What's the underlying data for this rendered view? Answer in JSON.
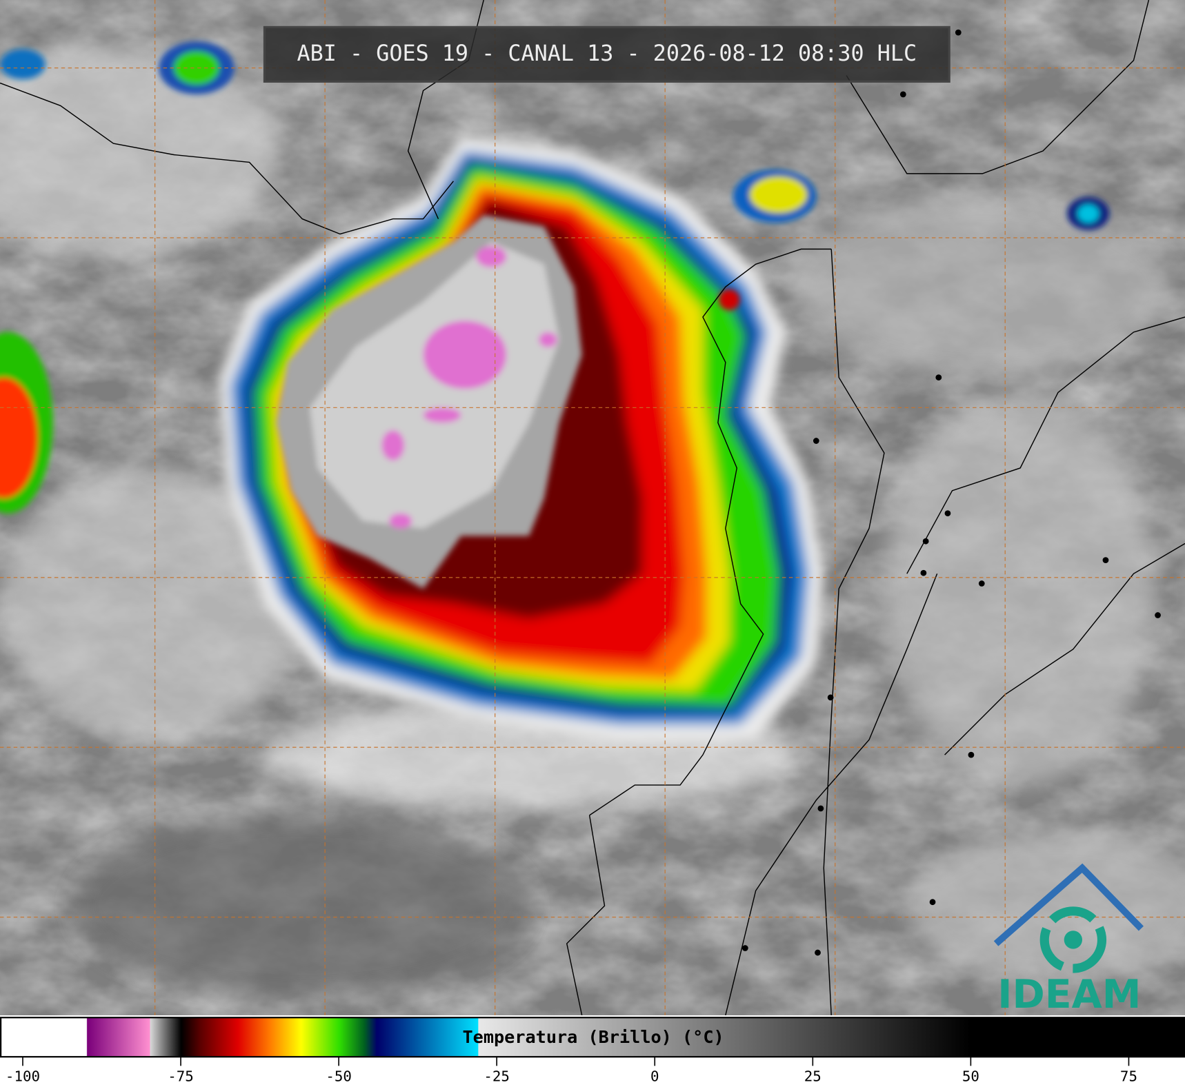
{
  "title": "ABI - GOES 19 - CANAL 13 - 2026-08-12 08:30 HLC",
  "colorbar": {
    "label": "Temperatura (Brillo) (°C)",
    "xlim": [
      -103.6,
      83.9
    ],
    "ticks": [
      -100,
      -75,
      -50,
      -25,
      0,
      25,
      50,
      75
    ],
    "colormap": [
      {
        "value": -103.6,
        "color": "#ffffff"
      },
      {
        "value": -90,
        "color": "#ffffff"
      },
      {
        "value": -89.9,
        "color": "#7a007a"
      },
      {
        "value": -80,
        "color": "#ff90d0"
      },
      {
        "value": -79.9,
        "color": "#d8d8d8"
      },
      {
        "value": -75,
        "color": "#000000"
      },
      {
        "value": -72,
        "color": "#5a0000"
      },
      {
        "value": -66,
        "color": "#e00000"
      },
      {
        "value": -61,
        "color": "#ff7a00"
      },
      {
        "value": -56,
        "color": "#ffff00"
      },
      {
        "value": -50,
        "color": "#30e000"
      },
      {
        "value": -46,
        "color": "#006020"
      },
      {
        "value": -44,
        "color": "#00006a"
      },
      {
        "value": -28,
        "color": "#00e0ff"
      },
      {
        "value": -27.9,
        "color": "#e8e8e8"
      },
      {
        "value": 50,
        "color": "#000000"
      },
      {
        "value": 83.9,
        "color": "#000000"
      }
    ]
  },
  "logo": {
    "text": "IDEAM"
  }
}
